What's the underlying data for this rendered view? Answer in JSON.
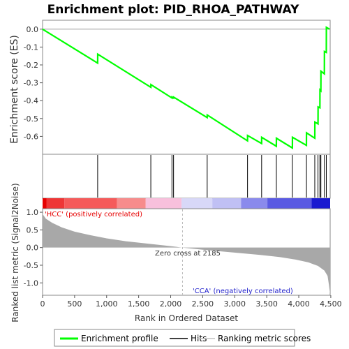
{
  "chart_data": {
    "type": "line",
    "title": "Enrichment plot: PID_RHOA_PATHWAY",
    "es_panel": {
      "ylabel": "Enrichment score (ES)",
      "ylim": [
        -0.7,
        0.05
      ],
      "yticks": [
        0.0,
        -0.1,
        -0.2,
        -0.3,
        -0.4,
        -0.5,
        -0.6
      ],
      "ytick_labels": [
        "0.0",
        "-0.1",
        "-0.2",
        "-0.3",
        "-0.4",
        "-0.5",
        "-0.6"
      ],
      "series": [
        {
          "name": "Enrichment profile",
          "color": "#00ff00",
          "x": [
            0,
            860,
            861,
            1690,
            1691,
            2020,
            2021,
            2045,
            2046,
            2570,
            2571,
            3200,
            3201,
            3420,
            3421,
            3650,
            3651,
            3900,
            3901,
            4120,
            4121,
            4250,
            4251,
            4300,
            4301,
            4330,
            4331,
            4345,
            4346,
            4400,
            4401,
            4430,
            4431,
            4480
          ],
          "y": [
            0.0,
            -0.19,
            -0.14,
            -0.325,
            -0.31,
            -0.385,
            -0.38,
            -0.385,
            -0.38,
            -0.495,
            -0.48,
            -0.625,
            -0.595,
            -0.64,
            -0.605,
            -0.655,
            -0.61,
            -0.665,
            -0.605,
            -0.65,
            -0.58,
            -0.61,
            -0.52,
            -0.53,
            -0.435,
            -0.44,
            -0.34,
            -0.345,
            -0.235,
            -0.25,
            -0.125,
            -0.13,
            0.01,
            0.0
          ]
        }
      ],
      "zero_line_color": "#999999"
    },
    "hits_panel": {
      "name": "Hits",
      "hit_positions": [
        860,
        1690,
        2020,
        2045,
        2570,
        3200,
        3420,
        3650,
        3900,
        4120,
        4250,
        4300,
        4330,
        4345,
        4400,
        4430
      ]
    },
    "color_bar": {
      "segments": [
        {
          "from": 0,
          "to": 60,
          "color": "#e60000"
        },
        {
          "from": 60,
          "to": 340,
          "color": "#ee3636"
        },
        {
          "from": 340,
          "to": 1160,
          "color": "#f55a5a"
        },
        {
          "from": 1160,
          "to": 1610,
          "color": "#f78c8c"
        },
        {
          "from": 1610,
          "to": 2170,
          "color": "#f8c0dc"
        },
        {
          "from": 2170,
          "to": 2650,
          "color": "#d8d8f8"
        },
        {
          "from": 2650,
          "to": 3100,
          "color": "#c0c0f4"
        },
        {
          "from": 3100,
          "to": 3510,
          "color": "#8a8aec"
        },
        {
          "from": 3510,
          "to": 4200,
          "color": "#5a5ae2"
        },
        {
          "from": 4200,
          "to": 4490,
          "color": "#1a1ad0"
        }
      ]
    },
    "metric_panel": {
      "ylabel": "Ranked list metric (Signal2Noise)",
      "ylim": [
        -1.35,
        1.1
      ],
      "yticks": [
        1.0,
        0.5,
        0.0,
        -0.5,
        -1.0
      ],
      "ytick_labels": [
        "1.0",
        "0.5",
        "0.0",
        "-0.5",
        "-1.0"
      ],
      "fill_color": "#a8a8a8",
      "x": [
        0,
        50,
        150,
        300,
        500,
        750,
        1000,
        1300,
        1600,
        1900,
        2185,
        2500,
        2800,
        3100,
        3400,
        3700,
        3950,
        4150,
        4300,
        4400,
        4450,
        4470,
        4490
      ],
      "y": [
        0.95,
        0.82,
        0.7,
        0.57,
        0.45,
        0.35,
        0.26,
        0.18,
        0.12,
        0.06,
        0.0,
        -0.06,
        -0.11,
        -0.16,
        -0.21,
        -0.27,
        -0.34,
        -0.42,
        -0.52,
        -0.65,
        -0.8,
        -1.05,
        -1.32
      ],
      "annotations": {
        "positive": "'HCC' (positively correlated)",
        "negative": "'CCA' (negatively correlated)",
        "zero_cross": "Zero cross at 2185"
      },
      "zero_cross_x": 2185
    },
    "xaxis": {
      "label": "Rank in Ordered Dataset",
      "xlim": [
        0,
        4490
      ],
      "ticks": [
        0,
        500,
        1000,
        1500,
        2000,
        2500,
        3000,
        3500,
        4000,
        4500
      ],
      "tick_labels": [
        "0",
        "500",
        "1,000",
        "1,500",
        "2,000",
        "2,500",
        "3,000",
        "3,500",
        "4,000",
        "4,500"
      ]
    },
    "legend": {
      "placement": "bottom",
      "items": [
        {
          "label": "Enrichment profile",
          "color": "#00ff00"
        },
        {
          "label": "Hits",
          "color": "#000000"
        },
        {
          "label": "Ranking metric scores",
          "color": "#c0c0c0"
        }
      ]
    },
    "positive_label_color": "#e60000",
    "negative_label_color": "#2222cc"
  }
}
